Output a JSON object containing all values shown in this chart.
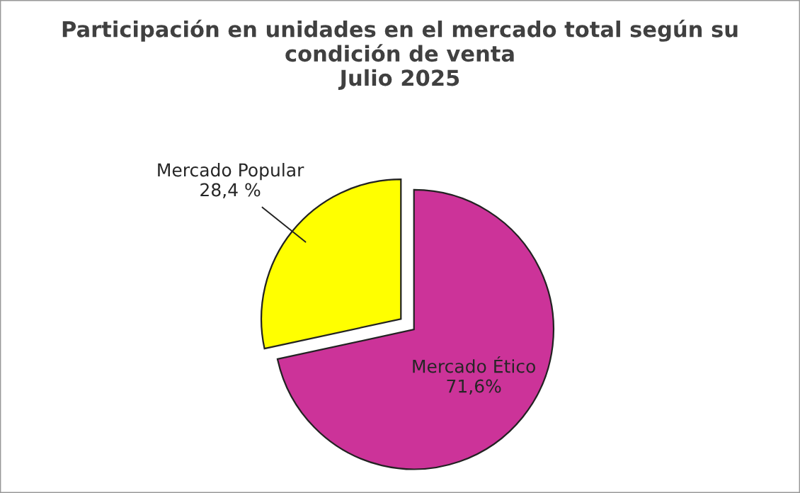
{
  "chart_data": {
    "type": "pie",
    "title": "Participación en unidades en el mercado total según su\ncondición de venta\nJulio 2025",
    "categories": [
      "Mercado Popular",
      "Mercado Ético"
    ],
    "values": [
      28.4,
      71.6
    ],
    "value_labels": [
      "28,4 %",
      "71,6%"
    ],
    "colors": [
      "#ffff00",
      "#cc3399"
    ]
  }
}
